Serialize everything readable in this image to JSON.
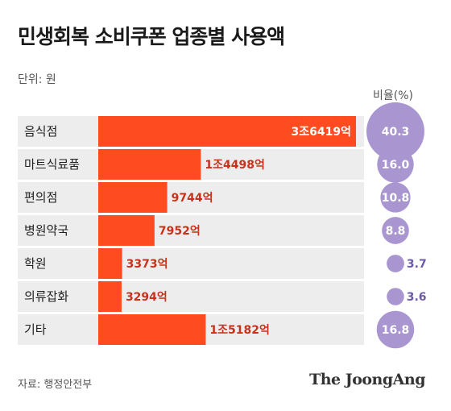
{
  "header": {
    "title": "민생회복 소비쿠폰 업종별 사용액",
    "unit": "단위: 원",
    "ratio_header": "비율(%)"
  },
  "footer": {
    "source": "자료: 행정안전부",
    "brand": "The JoongAng"
  },
  "colors": {
    "bar": "#ff4b1f",
    "value_text_outside": "#c7321a",
    "value_text_inside": "#ffffff",
    "row_band": "#ededed",
    "bubble": "#a996d1",
    "bubble_text_inside": "#ffffff",
    "bubble_text_outside": "#6c5aa8"
  },
  "chart_data": {
    "type": "bar",
    "orientation": "horizontal",
    "categories": [
      "음식점",
      "마트식료품",
      "편의점",
      "병원약국",
      "학원",
      "의류잡화",
      "기타"
    ],
    "values_eok": [
      36419,
      14498,
      9744,
      7952,
      3373,
      3294,
      15182
    ],
    "value_labels": [
      "3조6419억",
      "1조4498억",
      "9744억",
      "7952억",
      "3373억",
      "3294억",
      "1조5182억"
    ],
    "ratio_percent": [
      40.3,
      16.0,
      10.8,
      8.8,
      3.7,
      3.6,
      16.8
    ],
    "ratio_labels": [
      "40.3",
      "16.0",
      "10.8",
      "8.8",
      "3.7",
      "3.6",
      "16.8"
    ]
  }
}
